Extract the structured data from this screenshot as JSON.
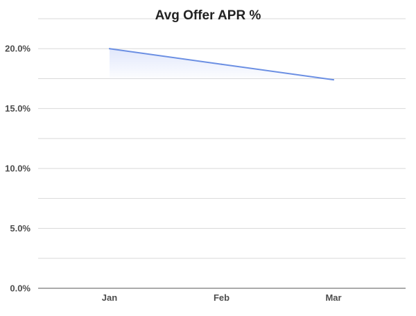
{
  "chart_data": {
    "type": "area",
    "title": "Avg Offer APR %",
    "xlabel": "",
    "ylabel": "",
    "categories": [
      "Jan",
      "Feb",
      "Mar"
    ],
    "series": [
      {
        "values": [
          20.0,
          18.7,
          17.4
        ]
      }
    ],
    "ylim": [
      0,
      22.5
    ],
    "y_ticks": [
      0,
      5,
      10,
      15,
      20
    ],
    "y_tick_labels": [
      "0.0%",
      "5.0%",
      "10.0%",
      "15.0%",
      "20.0%"
    ],
    "grid": true,
    "legend": "none",
    "colors": {
      "line": "#6b8fe3",
      "fill": "#dbe3fb",
      "grid": "#d9d9d9",
      "axis": "#555555"
    }
  }
}
